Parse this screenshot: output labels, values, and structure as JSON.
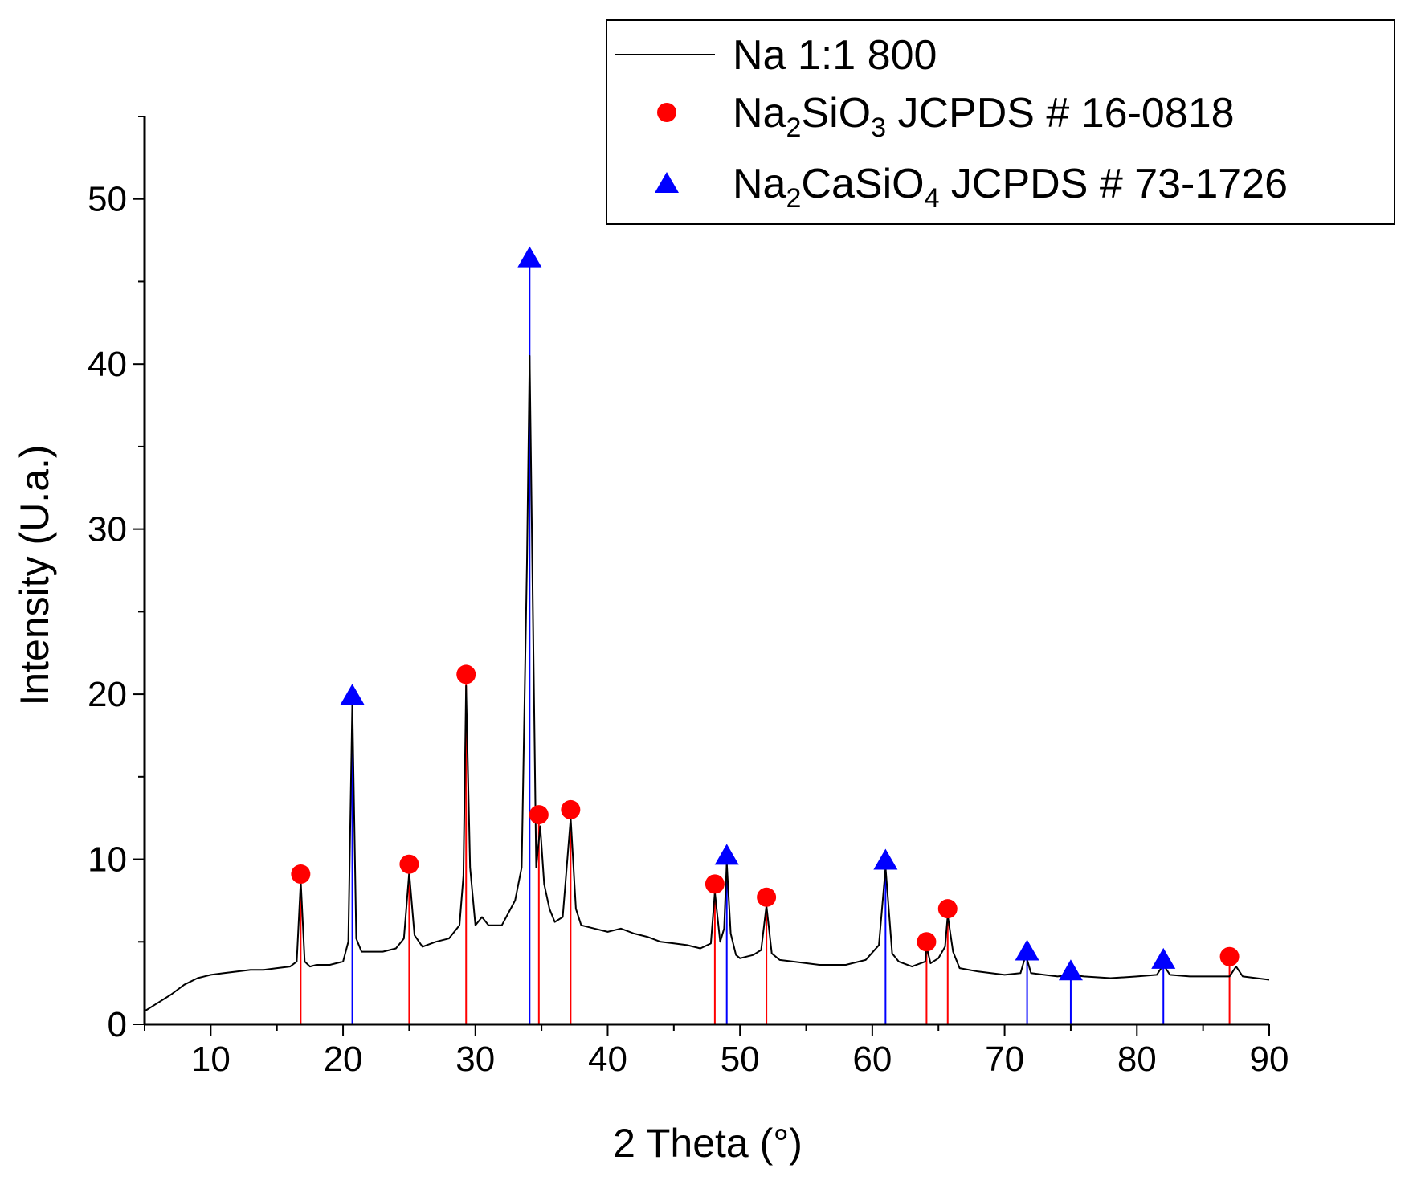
{
  "chart_data": {
    "type": "line",
    "title": "",
    "xlabel": "2 Theta (°)",
    "ylabel": "Intensity (U.a.)",
    "xlim": [
      5,
      90
    ],
    "ylim": [
      0,
      55
    ],
    "x_ticks": [
      10,
      20,
      30,
      40,
      50,
      60,
      70,
      80,
      90
    ],
    "y_ticks": [
      0,
      10,
      20,
      30,
      40,
      50
    ],
    "grid": false,
    "legend_position": "top-right",
    "legend": {
      "line": {
        "label": "Na 1:1 800",
        "color": "#000000"
      },
      "na2sio3": {
        "pre": "Na",
        "sub1": "2",
        "mid": "SiO",
        "sub2": "3",
        "post": " JCPDS # 16-0818",
        "color": "#ff0000",
        "marker": "circle"
      },
      "na2casio4": {
        "pre": "Na",
        "sub1": "2",
        "mid": "CaSiO",
        "sub2": "4",
        "post": " JCPDS # 73-1726",
        "color": "#0000ff",
        "marker": "triangle"
      }
    },
    "series": [
      {
        "name": "Na 1:1 800",
        "color": "#000000",
        "x": [
          5,
          6,
          7,
          8,
          9,
          10,
          11,
          12,
          13,
          14,
          15,
          16,
          16.5,
          16.8,
          17.1,
          17.5,
          18,
          19,
          20,
          20.4,
          20.7,
          21,
          21.4,
          22,
          23,
          24,
          24.6,
          25,
          25.4,
          26,
          27,
          28,
          28.8,
          29.1,
          29.3,
          29.6,
          30,
          30.5,
          31,
          32,
          33,
          33.5,
          33.9,
          34.1,
          34.35,
          34.6,
          34.9,
          35.2,
          35.6,
          36,
          36.6,
          37.2,
          37.6,
          38,
          39,
          40,
          41,
          42,
          43,
          44,
          45,
          46,
          47,
          47.8,
          48.1,
          48.5,
          48.8,
          49,
          49.3,
          49.7,
          50,
          51,
          51.6,
          52,
          52.4,
          53,
          54,
          56,
          58,
          59.5,
          60.5,
          61,
          61.5,
          62,
          63,
          64,
          64.1,
          64.4,
          65,
          65.5,
          65.7,
          66.1,
          66.6,
          68,
          70,
          71.2,
          71.6,
          72,
          73,
          74,
          75,
          76,
          78,
          80,
          81.5,
          82,
          82.5,
          84,
          86,
          87,
          87.5,
          88,
          90
        ],
        "values": [
          0.8,
          1.3,
          1.8,
          2.4,
          2.8,
          3.0,
          3.1,
          3.2,
          3.3,
          3.3,
          3.4,
          3.5,
          3.8,
          8.7,
          3.8,
          3.5,
          3.6,
          3.6,
          3.8,
          5.0,
          19.5,
          5.2,
          4.4,
          4.4,
          4.4,
          4.6,
          5.2,
          9.2,
          5.4,
          4.7,
          5.0,
          5.2,
          6.0,
          9.0,
          20.5,
          9.5,
          6.0,
          6.5,
          6.0,
          6.0,
          7.5,
          9.5,
          28.0,
          40.5,
          25.0,
          9.5,
          12.0,
          8.5,
          7.0,
          6.2,
          6.5,
          12.5,
          7.0,
          6.0,
          5.8,
          5.6,
          5.8,
          5.5,
          5.3,
          5.0,
          4.9,
          4.8,
          4.6,
          4.9,
          8.0,
          5.0,
          5.8,
          9.8,
          5.5,
          4.2,
          4.0,
          4.2,
          4.5,
          7.2,
          4.3,
          3.9,
          3.8,
          3.6,
          3.6,
          3.9,
          4.8,
          9.5,
          4.3,
          3.8,
          3.5,
          3.8,
          4.7,
          3.7,
          4.0,
          4.7,
          6.6,
          4.4,
          3.4,
          3.2,
          3.0,
          3.1,
          4.2,
          3.1,
          3.0,
          2.9,
          3.0,
          2.9,
          2.8,
          2.9,
          3.0,
          3.6,
          3.0,
          2.9,
          2.9,
          2.9,
          3.5,
          2.9,
          2.7
        ]
      }
    ],
    "reference_peaks": [
      {
        "name": "Na2SiO3 JCPDS # 16-0818",
        "color": "#ff0000",
        "marker": "circle",
        "x": [
          16.8,
          25.0,
          29.3,
          34.8,
          37.2,
          48.1,
          52.0,
          64.1,
          65.7,
          87.0
        ],
        "values": [
          9.1,
          9.7,
          21.2,
          12.7,
          13.0,
          8.5,
          7.7,
          5.0,
          7.0,
          4.1
        ]
      },
      {
        "name": "Na2CaSiO4 JCPDS # 73-1726",
        "color": "#0000ff",
        "marker": "triangle",
        "x": [
          20.7,
          34.1,
          49.0,
          61.0,
          71.7,
          75.0,
          82.0
        ],
        "values": [
          20.0,
          46.5,
          10.3,
          10.0,
          4.5,
          3.3,
          4.0
        ]
      }
    ]
  }
}
